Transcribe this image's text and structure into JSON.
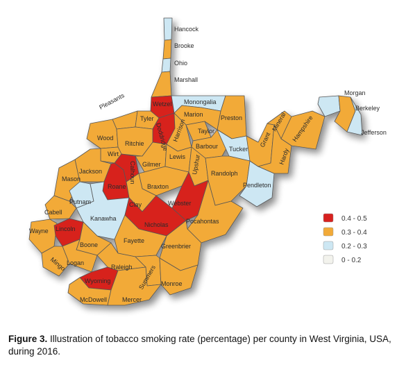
{
  "caption": {
    "figure_label": "Figure 3.",
    "text": "Illustration of tobacco smoking rate (percentage) per county in West Virginia, USA, during 2016."
  },
  "legend": [
    {
      "label": "0.4 - 0.5",
      "color": "#d7211f"
    },
    {
      "label": "0.3 - 0.4",
      "color": "#f2aa38"
    },
    {
      "label": "0.2 - 0.3",
      "color": "#cde7f3"
    },
    {
      "label": "0 - 0.2",
      "color": "#f3f3ed"
    }
  ],
  "counties": [
    {
      "name": "Hancock",
      "class": "0.2 - 0.3"
    },
    {
      "name": "Brooke",
      "class": "0.3 - 0.4"
    },
    {
      "name": "Ohio",
      "class": "0.2 - 0.3"
    },
    {
      "name": "Marshall",
      "class": "0.3 - 0.4"
    },
    {
      "name": "Wetzel",
      "class": "0.4 - 0.5"
    },
    {
      "name": "Monongalia",
      "class": "0.2 - 0.3"
    },
    {
      "name": "Marion",
      "class": "0.3 - 0.4"
    },
    {
      "name": "Preston",
      "class": "0.3 - 0.4"
    },
    {
      "name": "Pleasants",
      "class": "0.3 - 0.4"
    },
    {
      "name": "Tyler",
      "class": "0.3 - 0.4"
    },
    {
      "name": "Doddridge",
      "class": "0.4 - 0.5"
    },
    {
      "name": "Harrison",
      "class": "0.3 - 0.4"
    },
    {
      "name": "Taylor",
      "class": "0.3 - 0.4"
    },
    {
      "name": "Barbour",
      "class": "0.3 - 0.4"
    },
    {
      "name": "Tucker",
      "class": "0.2 - 0.3"
    },
    {
      "name": "Wood",
      "class": "0.3 - 0.4"
    },
    {
      "name": "Ritchie",
      "class": "0.3 - 0.4"
    },
    {
      "name": "Wirt",
      "class": "0.3 - 0.4"
    },
    {
      "name": "Gilmer",
      "class": "0.3 - 0.4"
    },
    {
      "name": "Lewis",
      "class": "0.3 - 0.4"
    },
    {
      "name": "Upshur",
      "class": "0.3 - 0.4"
    },
    {
      "name": "Randolph",
      "class": "0.3 - 0.4"
    },
    {
      "name": "Jackson",
      "class": "0.3 - 0.4"
    },
    {
      "name": "Calhoun",
      "class": "0.4 - 0.5"
    },
    {
      "name": "Roane",
      "class": "0.4 - 0.5"
    },
    {
      "name": "Braxton",
      "class": "0.3 - 0.4"
    },
    {
      "name": "Webster",
      "class": "0.4 - 0.5"
    },
    {
      "name": "Mason",
      "class": "0.3 - 0.4"
    },
    {
      "name": "Putnam",
      "class": "0.2 - 0.3"
    },
    {
      "name": "Clay",
      "class": "0.3 - 0.4"
    },
    {
      "name": "Pocahontas",
      "class": "0.3 - 0.4"
    },
    {
      "name": "Pendleton",
      "class": "0.2 - 0.3"
    },
    {
      "name": "Cabell",
      "class": "0.3 - 0.4"
    },
    {
      "name": "Kanawha",
      "class": "0.2 - 0.3"
    },
    {
      "name": "Nicholas",
      "class": "0.4 - 0.5"
    },
    {
      "name": "Wayne",
      "class": "0.3 - 0.4"
    },
    {
      "name": "Lincoln",
      "class": "0.4 - 0.5"
    },
    {
      "name": "Boone",
      "class": "0.3 - 0.4"
    },
    {
      "name": "Fayette",
      "class": "0.3 - 0.4"
    },
    {
      "name": "Greenbrier",
      "class": "0.3 - 0.4"
    },
    {
      "name": "Mingo",
      "class": "0.3 - 0.4"
    },
    {
      "name": "Logan",
      "class": "0.3 - 0.4"
    },
    {
      "name": "Raleigh",
      "class": "0.3 - 0.4"
    },
    {
      "name": "Summers",
      "class": "0.3 - 0.4"
    },
    {
      "name": "Monroe",
      "class": "0.3 - 0.4"
    },
    {
      "name": "Wyoming",
      "class": "0.4 - 0.5"
    },
    {
      "name": "McDowell",
      "class": "0.3 - 0.4"
    },
    {
      "name": "Mercer",
      "class": "0.3 - 0.4"
    },
    {
      "name": "Grant",
      "class": "0.3 - 0.4"
    },
    {
      "name": "Mineral",
      "class": "0.3 - 0.4"
    },
    {
      "name": "Hardy",
      "class": "0.3 - 0.4"
    },
    {
      "name": "Hampshire",
      "class": "0.3 - 0.4"
    },
    {
      "name": "Morgan",
      "class": "0.2 - 0.3"
    },
    {
      "name": "Berkeley",
      "class": "0.3 - 0.4"
    },
    {
      "name": "Jefferson",
      "class": "0.2 - 0.3"
    }
  ]
}
